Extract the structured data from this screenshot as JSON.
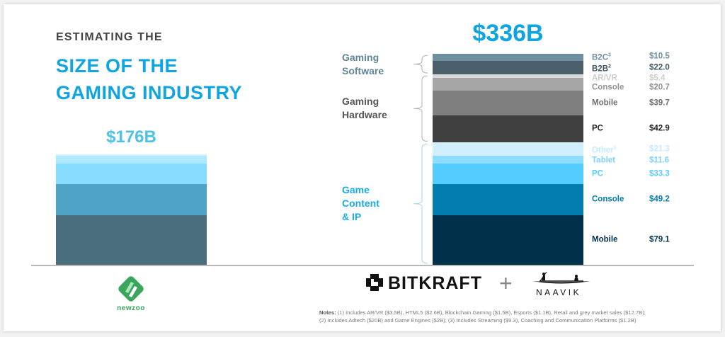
{
  "header": {
    "kicker": "ESTIMATING THE",
    "title_line1": "SIZE OF THE",
    "title_line2": "GAMING INDUSTRY"
  },
  "chart_data": [
    {
      "type": "bar",
      "stacked": true,
      "source": "newzoo",
      "title": "$176B",
      "total": 176,
      "units": "$B",
      "categories": [
        "newzoo"
      ],
      "series": [
        {
          "name": "Mobile",
          "values": [
            79.1
          ],
          "color": "#4a6e7e"
        },
        {
          "name": "Console",
          "values": [
            49.2
          ],
          "color": "#4ea3c6"
        },
        {
          "name": "PC",
          "values": [
            33.3
          ],
          "color": "#88dcff"
        },
        {
          "name": "Tablet",
          "values": [
            11.6
          ],
          "color": "#b0e8ff"
        },
        {
          "name": "Other",
          "values": [
            2.8
          ],
          "color": "#d4f2ff"
        }
      ]
    },
    {
      "type": "bar",
      "stacked": true,
      "source": "BITKRAFT + NAAVIK",
      "title": "$336B",
      "total": 336,
      "units": "$B",
      "categories": [
        "BITKRAFT + NAAVIK"
      ],
      "groups": [
        {
          "name": "Game Content & IP",
          "lines": [
            "Game",
            "Content",
            "& IP"
          ],
          "color": "#1aabe6",
          "segments": [
            "Mobile",
            "Console",
            "PC",
            "Tablet",
            "Other"
          ]
        },
        {
          "name": "Gaming Hardware",
          "lines": [
            "Gaming",
            "Hardware"
          ],
          "color": "#555555",
          "segments": [
            "PC (hw)",
            "Mobile (hw)",
            "Console (hw)",
            "AR/VR"
          ]
        },
        {
          "name": "Gaming Software",
          "lines": [
            "Gaming",
            "Software"
          ],
          "color": "#5e8598",
          "segments": [
            "B2B",
            "B2C"
          ]
        }
      ],
      "series": [
        {
          "name": "Mobile",
          "label": "Mobile",
          "sup": "",
          "value": 79.1,
          "display": "$79.1",
          "color": "#01304a",
          "text_color": "#01304a"
        },
        {
          "name": "Console",
          "label": "Console",
          "sup": "",
          "value": 49.2,
          "display": "$49.2",
          "color": "#037db0",
          "text_color": "#037db0"
        },
        {
          "name": "PC",
          "label": "PC",
          "sup": "",
          "value": 33.3,
          "display": "$33.3",
          "color": "#55ccff",
          "text_color": "#55ccff"
        },
        {
          "name": "Tablet",
          "label": "Tablet",
          "sup": "",
          "value": 11.6,
          "display": "$11.6",
          "color": "#8edcff",
          "text_color": "#7dd3fa"
        },
        {
          "name": "Other",
          "label": "Other",
          "sup": "1",
          "value": 21.3,
          "display": "$21.3",
          "color": "#d1f0ff",
          "text_color": "#c3ebfd"
        },
        {
          "name": "PC (hw)",
          "label": "PC",
          "sup": "",
          "value": 42.9,
          "display": "$42.9",
          "color": "#404040",
          "text_color": "#222222"
        },
        {
          "name": "Mobile (hw)",
          "label": "Mobile",
          "sup": "",
          "value": 39.7,
          "display": "$39.7",
          "color": "#7f7f7f",
          "text_color": "#6f6f6f"
        },
        {
          "name": "Console (hw)",
          "label": "Console",
          "sup": "",
          "value": 20.7,
          "display": "$20.7",
          "color": "#a6a6a6",
          "text_color": "#939393"
        },
        {
          "name": "AR/VR",
          "label": "AR/VR",
          "sup": "",
          "value": 5.4,
          "display": "$5.4",
          "color": "#d9d9d9",
          "text_color": "#cdcdcd"
        },
        {
          "name": "B2B",
          "label": "B2B",
          "sup": "2",
          "value": 22.0,
          "display": "$22.0",
          "color": "#4a5f6a",
          "text_color": "#3d5561"
        },
        {
          "name": "B2C",
          "label": "B2C",
          "sup": "3",
          "value": 10.5,
          "display": "$10.5",
          "color": "#6e8fa0",
          "text_color": "#6e8fa0"
        }
      ]
    }
  ],
  "logos": {
    "newzoo": "newzoo",
    "bitkraft": "BITKRAFT",
    "plus": "+",
    "naavik": "NAAVIK"
  },
  "notes": {
    "label": "Notes:",
    "line1": " (1) Includes AR/VR ($3.5B), HTML5 ($2.6B), Blockchain Gaming ($1.5B), Esports ($1.1B), Retail and grey market sales ($12.7B);",
    "line2": "(2) Includes Adtech ($20B) and Game Engines ($2B); (3) Includes Streaming ($9.3), Coaching and Communication Platforms ($1.2B)"
  }
}
